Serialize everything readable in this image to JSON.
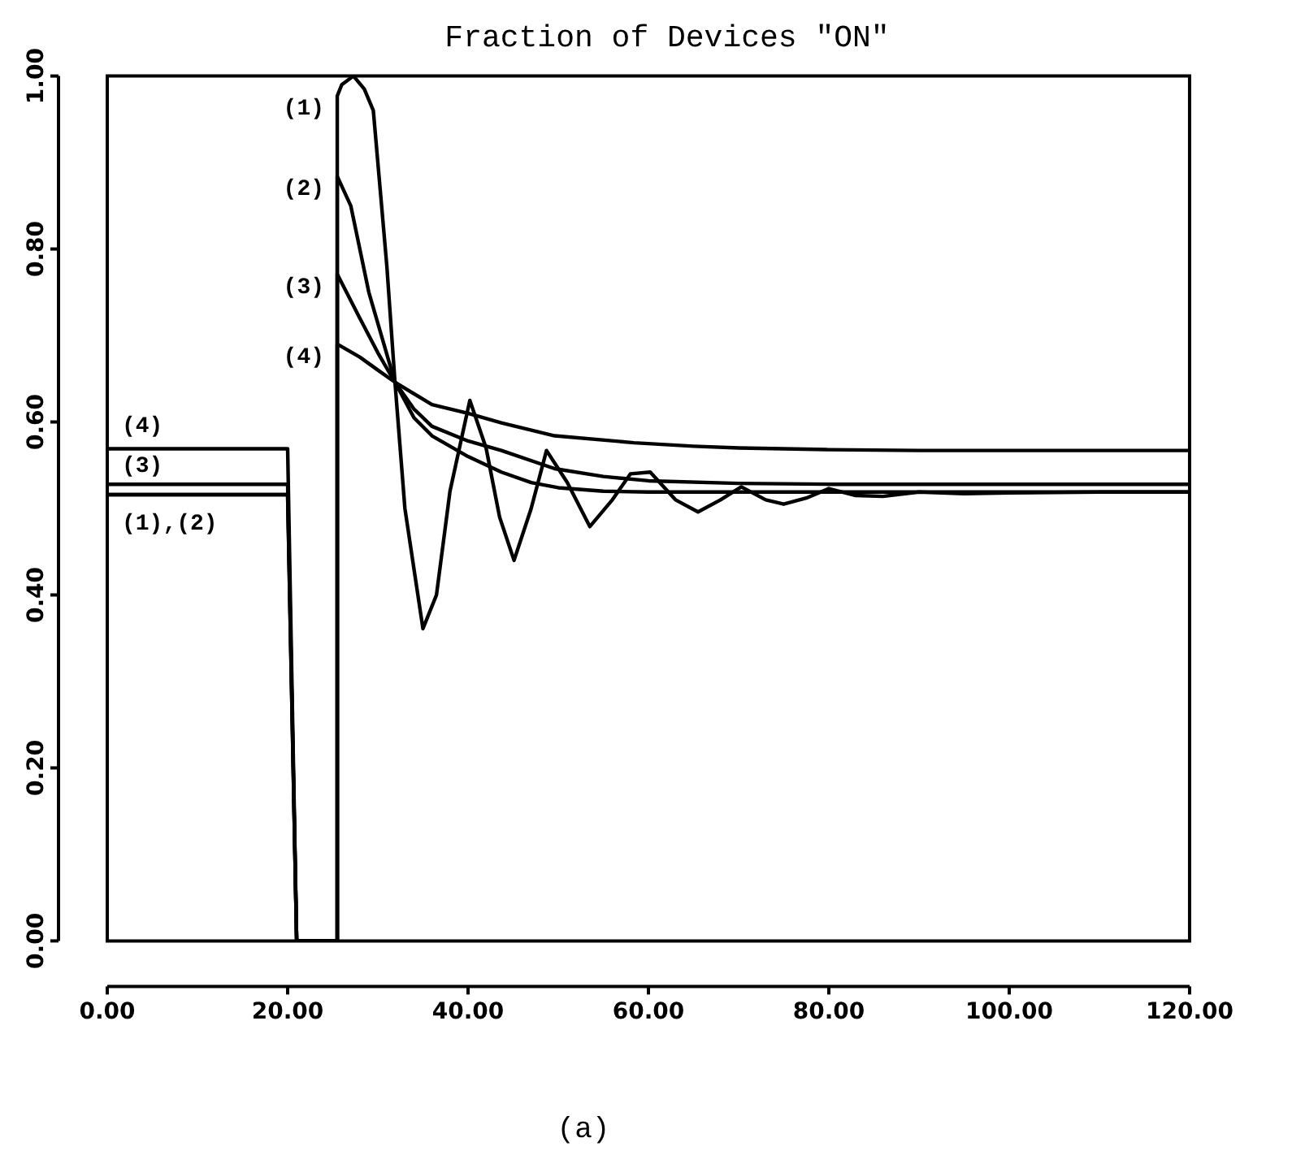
{
  "chart_data": {
    "type": "line",
    "title": "Fraction of Devices \"ON\"",
    "xlim": [
      0,
      120
    ],
    "ylim": [
      0,
      1
    ],
    "xticks": [
      {
        "value": 0,
        "label": "0.00"
      },
      {
        "value": 20,
        "label": "20.00"
      },
      {
        "value": 40,
        "label": "40.00"
      },
      {
        "value": 60,
        "label": "60.00"
      },
      {
        "value": 80,
        "label": "80.00"
      },
      {
        "value": 100,
        "label": "100.00"
      },
      {
        "value": 120,
        "label": "120.00"
      }
    ],
    "yticks": [
      {
        "value": 0,
        "label": "0.00"
      },
      {
        "value": 0.2,
        "label": "0.20"
      },
      {
        "value": 0.4,
        "label": "0.40"
      },
      {
        "value": 0.6,
        "label": "0.60"
      },
      {
        "value": 0.8,
        "label": "0.80"
      },
      {
        "value": 1,
        "label": "1.00"
      }
    ],
    "grid": false,
    "legend": false,
    "marker": "none",
    "line_style": "solid",
    "series": [
      {
        "name": "(1)",
        "color": "#000000",
        "x": [
          0,
          20,
          21,
          25.5,
          25.5,
          26,
          27.3,
          28.5,
          29.5,
          31,
          31.9,
          33,
          35,
          36.5,
          38,
          40.2,
          42,
          43.5,
          45.1,
          47,
          48.7,
          51,
          53.5,
          56,
          58,
          60.2,
          63,
          65.5,
          68,
          70.3,
          73,
          75,
          77.5,
          80,
          83,
          86,
          90,
          95,
          100,
          110,
          120
        ],
        "values": [
          0.516,
          0.516,
          0,
          0,
          0.977,
          0.99,
          1.0,
          0.985,
          0.96,
          0.78,
          0.646,
          0.5,
          0.361,
          0.4,
          0.52,
          0.625,
          0.57,
          0.49,
          0.44,
          0.5,
          0.567,
          0.53,
          0.479,
          0.51,
          0.54,
          0.542,
          0.51,
          0.496,
          0.51,
          0.525,
          0.51,
          0.505,
          0.512,
          0.523,
          0.515,
          0.514,
          0.519,
          0.517,
          0.518,
          0.519,
          0.519
        ]
      },
      {
        "name": "(2)",
        "color": "#000000",
        "x": [
          0,
          20,
          21,
          25.5,
          25.5,
          27,
          29,
          31.9,
          34,
          36,
          40,
          43.7,
          47,
          50,
          55,
          60,
          80,
          120
        ],
        "values": [
          0.516,
          0.516,
          0,
          0,
          0.884,
          0.85,
          0.75,
          0.646,
          0.605,
          0.584,
          0.56,
          0.542,
          0.53,
          0.524,
          0.52,
          0.519,
          0.519,
          0.519
        ]
      },
      {
        "name": "(3)",
        "color": "#000000",
        "x": [
          0,
          20,
          21,
          25.5,
          25.5,
          28,
          30,
          31.9,
          34,
          36,
          40,
          43.7,
          49.6,
          55,
          60,
          70,
          80,
          120
        ],
        "values": [
          0.528,
          0.528,
          0,
          0,
          0.771,
          0.72,
          0.68,
          0.646,
          0.615,
          0.595,
          0.578,
          0.567,
          0.546,
          0.537,
          0.532,
          0.529,
          0.528,
          0.528
        ]
      },
      {
        "name": "(4)",
        "color": "#000000",
        "x": [
          0,
          20,
          21,
          25.5,
          25.5,
          28,
          30,
          31.9,
          36,
          40,
          43.7,
          49.6,
          58.4,
          65,
          70,
          80,
          90,
          120
        ],
        "values": [
          0.569,
          0.569,
          0,
          0,
          0.69,
          0.675,
          0.66,
          0.646,
          0.62,
          0.61,
          0.599,
          0.584,
          0.576,
          0.572,
          0.57,
          0.568,
          0.567,
          0.567
        ]
      }
    ],
    "annotations": [
      "(4)",
      "(3)",
      "(1),(2)",
      "(a)"
    ]
  }
}
